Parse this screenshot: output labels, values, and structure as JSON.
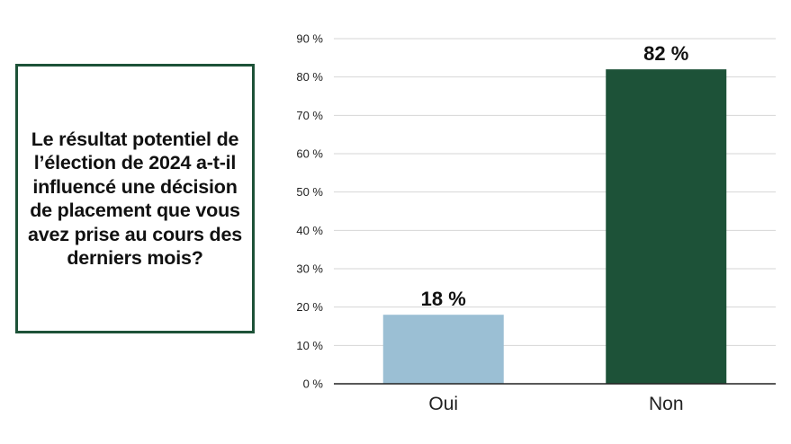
{
  "question": {
    "text": "Le résultat potentiel de l’élection de 2024 a-t-il influencé une décision de placement que vous avez prise au cours des derniers mois?",
    "border_color": "#1d5238"
  },
  "chart_data": {
    "type": "bar",
    "categories": [
      "Oui",
      "Non"
    ],
    "values": [
      18,
      82
    ],
    "data_labels": [
      "18 %",
      "82 %"
    ],
    "colors": [
      "#9bbfd4",
      "#1d5238"
    ],
    "ylim": [
      0,
      90
    ],
    "y_ticks": [
      0,
      10,
      20,
      30,
      40,
      50,
      60,
      70,
      80,
      90
    ],
    "y_tick_labels": [
      "0 %",
      "10 %",
      "20 %",
      "30 %",
      "40 %",
      "50 %",
      "60 %",
      "70 %",
      "80 %",
      "90 %"
    ],
    "grid": true,
    "title": "",
    "xlabel": "",
    "ylabel": ""
  }
}
